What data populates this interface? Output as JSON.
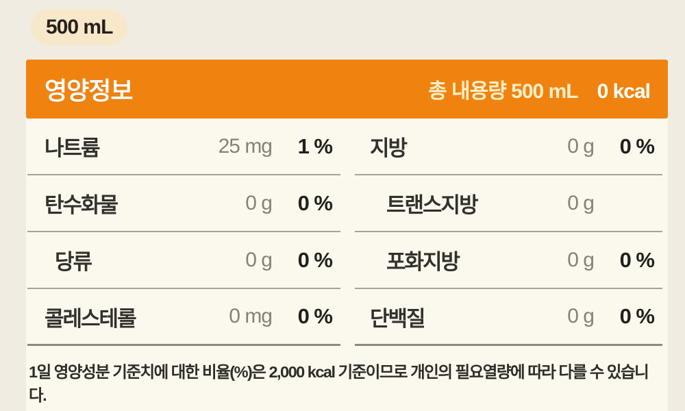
{
  "badge": {
    "label": "500 mL"
  },
  "header": {
    "title": "영양정보",
    "total_volume": "총 내용량 500 mL",
    "calories": "0 kcal"
  },
  "table": {
    "left_rows": [
      {
        "label": "나트륨",
        "amount": "25 mg",
        "dv": "1 %",
        "indent": false
      },
      {
        "label": "탄수화물",
        "amount": "0 g",
        "dv": "0 %",
        "indent": false
      },
      {
        "label": "당류",
        "amount": "0 g",
        "dv": "0 %",
        "indent": true
      },
      {
        "label": "콜레스테롤",
        "amount": "0 mg",
        "dv": "0 %",
        "indent": false
      }
    ],
    "right_rows": [
      {
        "label": "지방",
        "amount": "0 g",
        "dv": "0 %",
        "indent": false
      },
      {
        "label": "트랜스지방",
        "amount": "0 g",
        "dv": "",
        "indent": true
      },
      {
        "label": "포화지방",
        "amount": "0 g",
        "dv": "0 %",
        "indent": true
      },
      {
        "label": "단백질",
        "amount": "0 g",
        "dv": "0 %",
        "indent": false
      }
    ]
  },
  "footer": {
    "note": "1일 영양성분 기준치에 대한 비율(%)은 2,000 kcal 기준이므로 개인의 필요열량에 따라 다를 수 있습니다."
  },
  "colors": {
    "accent_orange": "#f0830f",
    "badge_bg": "#f8e8ca",
    "card_bg": "#fbf8ee",
    "page_bg": "#f0ece2",
    "header_sub_text": "#fcefc9"
  }
}
